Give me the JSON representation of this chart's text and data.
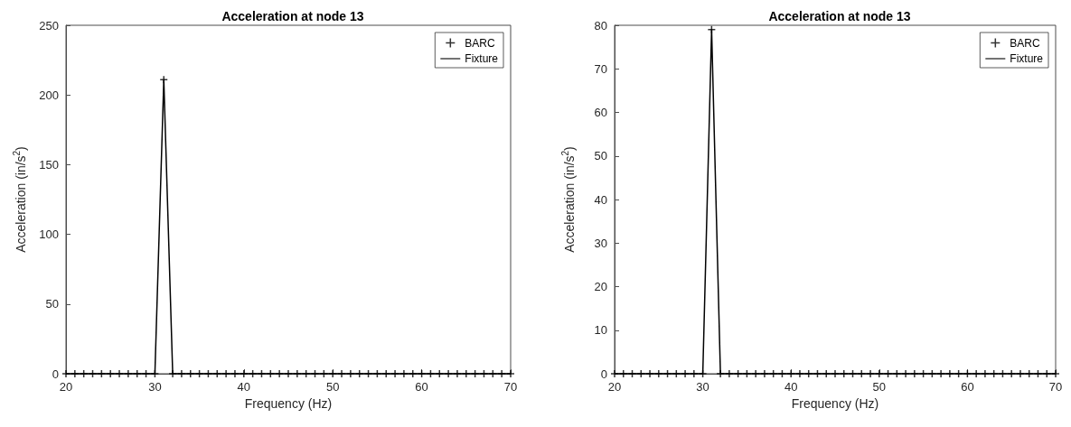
{
  "chart_data": [
    {
      "type": "line",
      "title": "Acceleration at node 13",
      "xlabel": "Frequency (Hz)",
      "ylabel": "Acceleration (in/s$^{2}$)",
      "x": [
        20,
        21,
        22,
        23,
        24,
        25,
        26,
        27,
        28,
        29,
        30,
        31,
        32,
        33,
        34,
        35,
        36,
        37,
        38,
        39,
        40,
        41,
        42,
        43,
        44,
        45,
        46,
        47,
        48,
        49,
        50,
        51,
        52,
        53,
        54,
        55,
        56,
        57,
        58,
        59,
        60,
        61,
        62,
        63,
        64,
        65,
        66,
        67,
        68,
        69,
        70
      ],
      "series": [
        {
          "name": "BARC",
          "type": "scatter",
          "color": "#000000",
          "marker": "cross",
          "values": [
            0,
            0,
            0,
            0,
            0,
            0,
            0,
            0,
            0,
            0,
            0,
            211,
            0,
            0,
            0,
            0,
            0,
            0,
            0,
            0,
            0,
            0,
            0,
            0,
            0,
            0,
            0,
            0,
            0,
            0,
            0,
            0,
            0,
            0,
            0,
            0,
            0,
            0,
            0,
            0,
            0,
            0,
            0,
            0,
            0,
            0,
            0,
            0,
            0,
            0,
            0
          ]
        },
        {
          "name": "Fixture",
          "type": "line",
          "color": "#000000",
          "line_style": "solid",
          "values": [
            0,
            0,
            0,
            0,
            0,
            0,
            0,
            0,
            0,
            0,
            0,
            211,
            0,
            0,
            0,
            0,
            0,
            0,
            0,
            0,
            0,
            0,
            0,
            0,
            0,
            0,
            0,
            0,
            0,
            0,
            0,
            0,
            0,
            0,
            0,
            0,
            0,
            0,
            0,
            0,
            0,
            0,
            0,
            0,
            0,
            0,
            0,
            0,
            0,
            0,
            0
          ]
        }
      ],
      "xlim": [
        20,
        70
      ],
      "xticks": [
        20,
        30,
        40,
        50,
        60,
        70
      ],
      "ylim": [
        0,
        250
      ],
      "yticks": [
        0,
        50,
        100,
        150,
        200,
        250
      ],
      "grid": false,
      "legend": "top right"
    },
    {
      "type": "line",
      "title": "Acceleration at node 13",
      "xlabel": "Frequency (Hz)",
      "ylabel": "Acceleration (in/s$^{2}$)",
      "x": [
        20,
        21,
        22,
        23,
        24,
        25,
        26,
        27,
        28,
        29,
        30,
        31,
        32,
        33,
        34,
        35,
        36,
        37,
        38,
        39,
        40,
        41,
        42,
        43,
        44,
        45,
        46,
        47,
        48,
        49,
        50,
        51,
        52,
        53,
        54,
        55,
        56,
        57,
        58,
        59,
        60,
        61,
        62,
        63,
        64,
        65,
        66,
        67,
        68,
        69,
        70
      ],
      "series": [
        {
          "name": "BARC",
          "type": "scatter",
          "color": "#000000",
          "marker": "cross",
          "values": [
            0,
            0,
            0,
            0,
            0,
            0,
            0,
            0,
            0,
            0,
            0,
            79,
            0,
            0,
            0,
            0,
            0,
            0,
            0,
            0,
            0,
            0,
            0,
            0,
            0,
            0,
            0,
            0,
            0,
            0,
            0,
            0,
            0,
            0,
            0,
            0,
            0,
            0,
            0,
            0,
            0,
            0,
            0,
            0,
            0,
            0,
            0,
            0,
            0,
            0,
            0
          ]
        },
        {
          "name": "Fixture",
          "type": "line",
          "color": "#000000",
          "line_style": "solid",
          "values": [
            0,
            0,
            0,
            0,
            0,
            0,
            0,
            0,
            0,
            0,
            0,
            79,
            0,
            0,
            0,
            0,
            0,
            0,
            0,
            0,
            0,
            0,
            0,
            0,
            0,
            0,
            0,
            0,
            0,
            0,
            0,
            0,
            0,
            0,
            0,
            0,
            0,
            0,
            0,
            0,
            0,
            0,
            0,
            0,
            0,
            0,
            0,
            0,
            0,
            0,
            0
          ]
        }
      ],
      "xlim": [
        20,
        70
      ],
      "xticks": [
        20,
        30,
        40,
        50,
        60,
        70
      ],
      "ylim": [
        0,
        80
      ],
      "yticks": [
        0,
        10,
        20,
        30,
        40,
        50,
        60,
        70,
        80
      ],
      "grid": false,
      "legend": "top right"
    }
  ]
}
